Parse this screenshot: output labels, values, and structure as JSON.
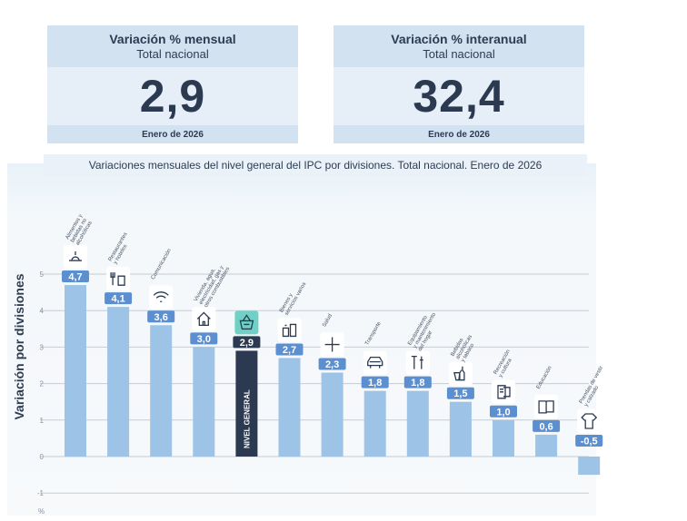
{
  "kpis": {
    "monthly": {
      "title": "Variación % mensual",
      "subtitle": "Total nacional",
      "value": "2,9",
      "period": "Enero de 2026"
    },
    "annual": {
      "title": "Variación % interanual",
      "subtitle": "Total nacional",
      "value": "32,4",
      "period": "Enero de 2026"
    }
  },
  "chart_data": {
    "type": "bar",
    "title": "Variaciones mensuales del nivel general del IPC por divisiones. Total nacional. Enero de 2026",
    "ylabel": "Variación por divisiones",
    "yunit": "%",
    "ylim": [
      -1,
      5
    ],
    "yticks": [
      -1,
      0,
      1,
      2,
      3,
      4,
      5
    ],
    "grid": true,
    "categories": [
      "Alimentos y bebidas no alcohólicas",
      "Restaurantes y hoteles",
      "Comunicación",
      "Vivienda, agua, electricidad, gas y otros combustibles",
      "NIVEL GENERAL",
      "Bienes y servicios varios",
      "Salud",
      "Transporte",
      "Equipamiento y mantenimiento del hogar",
      "Bebidas alcohólicas y tabaco",
      "Recreación y cultura",
      "Educación",
      "Prendas de vestir y calzado"
    ],
    "category_lines": [
      [
        "Alimentos y",
        "bebidas no",
        "alcohólicas"
      ],
      [
        "Restaurantes",
        "y hoteles"
      ],
      [
        "Comunicación"
      ],
      [
        "Vivienda, agua,",
        "electricidad, gas y",
        "otros combustibles"
      ],
      [],
      [
        "Bienes y",
        "servicios varios"
      ],
      [
        "Salud"
      ],
      [
        "Transporte"
      ],
      [
        "Equipamiento",
        "y mantenimiento",
        "del hogar"
      ],
      [
        "Bebidas",
        "alcohólicas",
        "y tabaco"
      ],
      [
        "Recreación",
        "y cultura"
      ],
      [
        "Educación"
      ],
      [
        "Prendas de vestir",
        "y calzado"
      ]
    ],
    "values": [
      4.7,
      4.1,
      3.6,
      3.0,
      2.9,
      2.7,
      2.3,
      1.8,
      1.8,
      1.5,
      1.0,
      0.6,
      -0.5
    ],
    "value_labels": [
      "4,7",
      "4,1",
      "3,6",
      "3,0",
      "2,9",
      "2,7",
      "2,3",
      "1,8",
      "1,8",
      "1,5",
      "1,0",
      "0,6",
      "-0,5"
    ],
    "icons": [
      "food-icon",
      "restaurant-icon",
      "wifi-icon",
      "house-icon",
      "basket-icon",
      "products-icon",
      "health-cross-icon",
      "car-icon",
      "tools-icon",
      "bottle-icon",
      "ticket-icon",
      "book-icon",
      "tshirt-icon"
    ],
    "highlight_index": 4,
    "highlight_label": "NIVEL GENERAL",
    "colors": {
      "bar": "#9dc3e6",
      "highlight": "#2b3a50",
      "label": "#5b8fd0"
    }
  }
}
